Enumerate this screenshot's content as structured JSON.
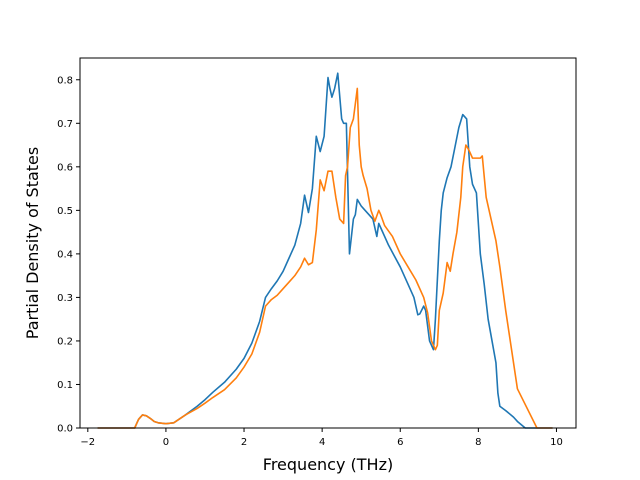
{
  "chart_data": {
    "type": "line",
    "title": "",
    "xlabel": "Frequency (THz)",
    "ylabel": "Partial Density of States",
    "xlim": [
      -2.2,
      10.5
    ],
    "ylim": [
      0.0,
      0.85
    ],
    "xticks": [
      -2,
      0,
      2,
      4,
      6,
      8,
      10
    ],
    "yticks": [
      0.0,
      0.1,
      0.2,
      0.3,
      0.4,
      0.5,
      0.6,
      0.7,
      0.8
    ],
    "xtick_labels": [
      "−2",
      "0",
      "2",
      "4",
      "6",
      "8",
      "10"
    ],
    "ytick_labels": [
      "0.0",
      "0.1",
      "0.2",
      "0.3",
      "0.4",
      "0.5",
      "0.6",
      "0.7",
      "0.8"
    ],
    "grid": false,
    "legend": "none",
    "series": [
      {
        "color": "#1f77b4",
        "x": [
          -1.75,
          -0.8,
          -0.7,
          -0.6,
          -0.5,
          -0.4,
          -0.3,
          -0.2,
          0.0,
          0.2,
          0.3,
          0.5,
          0.8,
          1.0,
          1.2,
          1.5,
          1.8,
          2.0,
          2.2,
          2.4,
          2.55,
          2.7,
          2.85,
          3.0,
          3.15,
          3.3,
          3.45,
          3.55,
          3.65,
          3.75,
          3.85,
          3.95,
          4.05,
          4.15,
          4.2,
          4.25,
          4.32,
          4.4,
          4.5,
          4.55,
          4.62,
          4.7,
          4.8,
          4.85,
          4.9,
          5.0,
          5.05,
          5.15,
          5.3,
          5.4,
          5.45,
          5.5,
          5.7,
          6.0,
          6.2,
          6.35,
          6.45,
          6.5,
          6.6,
          6.65,
          6.75,
          6.85,
          6.9,
          7.0,
          7.05,
          7.1,
          7.2,
          7.3,
          7.4,
          7.5,
          7.6,
          7.7,
          7.78,
          7.85,
          7.95,
          8.05,
          8.15,
          8.25,
          8.35,
          8.45,
          8.5,
          8.55,
          8.7,
          8.9,
          9.0,
          9.2,
          9.9
        ],
        "y": [
          0.0,
          0.0,
          0.02,
          0.03,
          0.028,
          0.022,
          0.015,
          0.012,
          0.01,
          0.012,
          0.018,
          0.03,
          0.05,
          0.065,
          0.082,
          0.105,
          0.135,
          0.16,
          0.195,
          0.245,
          0.3,
          0.32,
          0.338,
          0.36,
          0.39,
          0.42,
          0.47,
          0.535,
          0.495,
          0.55,
          0.67,
          0.635,
          0.67,
          0.805,
          0.78,
          0.76,
          0.78,
          0.815,
          0.71,
          0.7,
          0.7,
          0.4,
          0.48,
          0.49,
          0.525,
          0.51,
          0.505,
          0.495,
          0.48,
          0.44,
          0.47,
          0.46,
          0.42,
          0.37,
          0.33,
          0.3,
          0.26,
          0.262,
          0.28,
          0.27,
          0.2,
          0.18,
          0.25,
          0.43,
          0.5,
          0.54,
          0.575,
          0.6,
          0.645,
          0.69,
          0.72,
          0.71,
          0.6,
          0.56,
          0.54,
          0.4,
          0.33,
          0.25,
          0.2,
          0.15,
          0.08,
          0.05,
          0.04,
          0.025,
          0.015,
          0.0,
          0.0
        ]
      },
      {
        "color": "#ff7f0e",
        "x": [
          -1.75,
          -0.8,
          -0.7,
          -0.6,
          -0.5,
          -0.4,
          -0.3,
          -0.2,
          0.0,
          0.2,
          0.3,
          0.5,
          0.8,
          1.0,
          1.2,
          1.5,
          1.8,
          2.0,
          2.2,
          2.4,
          2.55,
          2.7,
          2.85,
          3.0,
          3.15,
          3.3,
          3.45,
          3.55,
          3.65,
          3.75,
          3.85,
          3.95,
          4.05,
          4.15,
          4.25,
          4.35,
          4.45,
          4.55,
          4.6,
          4.65,
          4.72,
          4.8,
          4.9,
          4.95,
          5.0,
          5.05,
          5.15,
          5.25,
          5.35,
          5.45,
          5.5,
          5.6,
          5.8,
          6.0,
          6.2,
          6.4,
          6.6,
          6.7,
          6.8,
          6.9,
          6.95,
          7.0,
          7.1,
          7.2,
          7.28,
          7.35,
          7.45,
          7.55,
          7.6,
          7.68,
          7.75,
          7.85,
          7.95,
          8.05,
          8.1,
          8.2,
          8.35,
          8.45,
          8.55,
          8.7,
          8.85,
          8.95,
          9.0,
          9.5,
          9.9
        ],
        "y": [
          0.0,
          0.0,
          0.02,
          0.03,
          0.028,
          0.022,
          0.015,
          0.012,
          0.01,
          0.012,
          0.018,
          0.03,
          0.045,
          0.057,
          0.07,
          0.088,
          0.115,
          0.14,
          0.17,
          0.22,
          0.28,
          0.295,
          0.305,
          0.32,
          0.335,
          0.35,
          0.37,
          0.39,
          0.375,
          0.38,
          0.455,
          0.57,
          0.545,
          0.59,
          0.59,
          0.53,
          0.48,
          0.47,
          0.58,
          0.6,
          0.69,
          0.71,
          0.78,
          0.65,
          0.6,
          0.58,
          0.55,
          0.5,
          0.475,
          0.5,
          0.49,
          0.465,
          0.44,
          0.4,
          0.37,
          0.34,
          0.3,
          0.265,
          0.2,
          0.18,
          0.19,
          0.27,
          0.31,
          0.38,
          0.36,
          0.4,
          0.45,
          0.53,
          0.6,
          0.65,
          0.64,
          0.62,
          0.62,
          0.62,
          0.625,
          0.53,
          0.47,
          0.43,
          0.37,
          0.27,
          0.18,
          0.12,
          0.09,
          0.0,
          0.0
        ]
      }
    ]
  }
}
